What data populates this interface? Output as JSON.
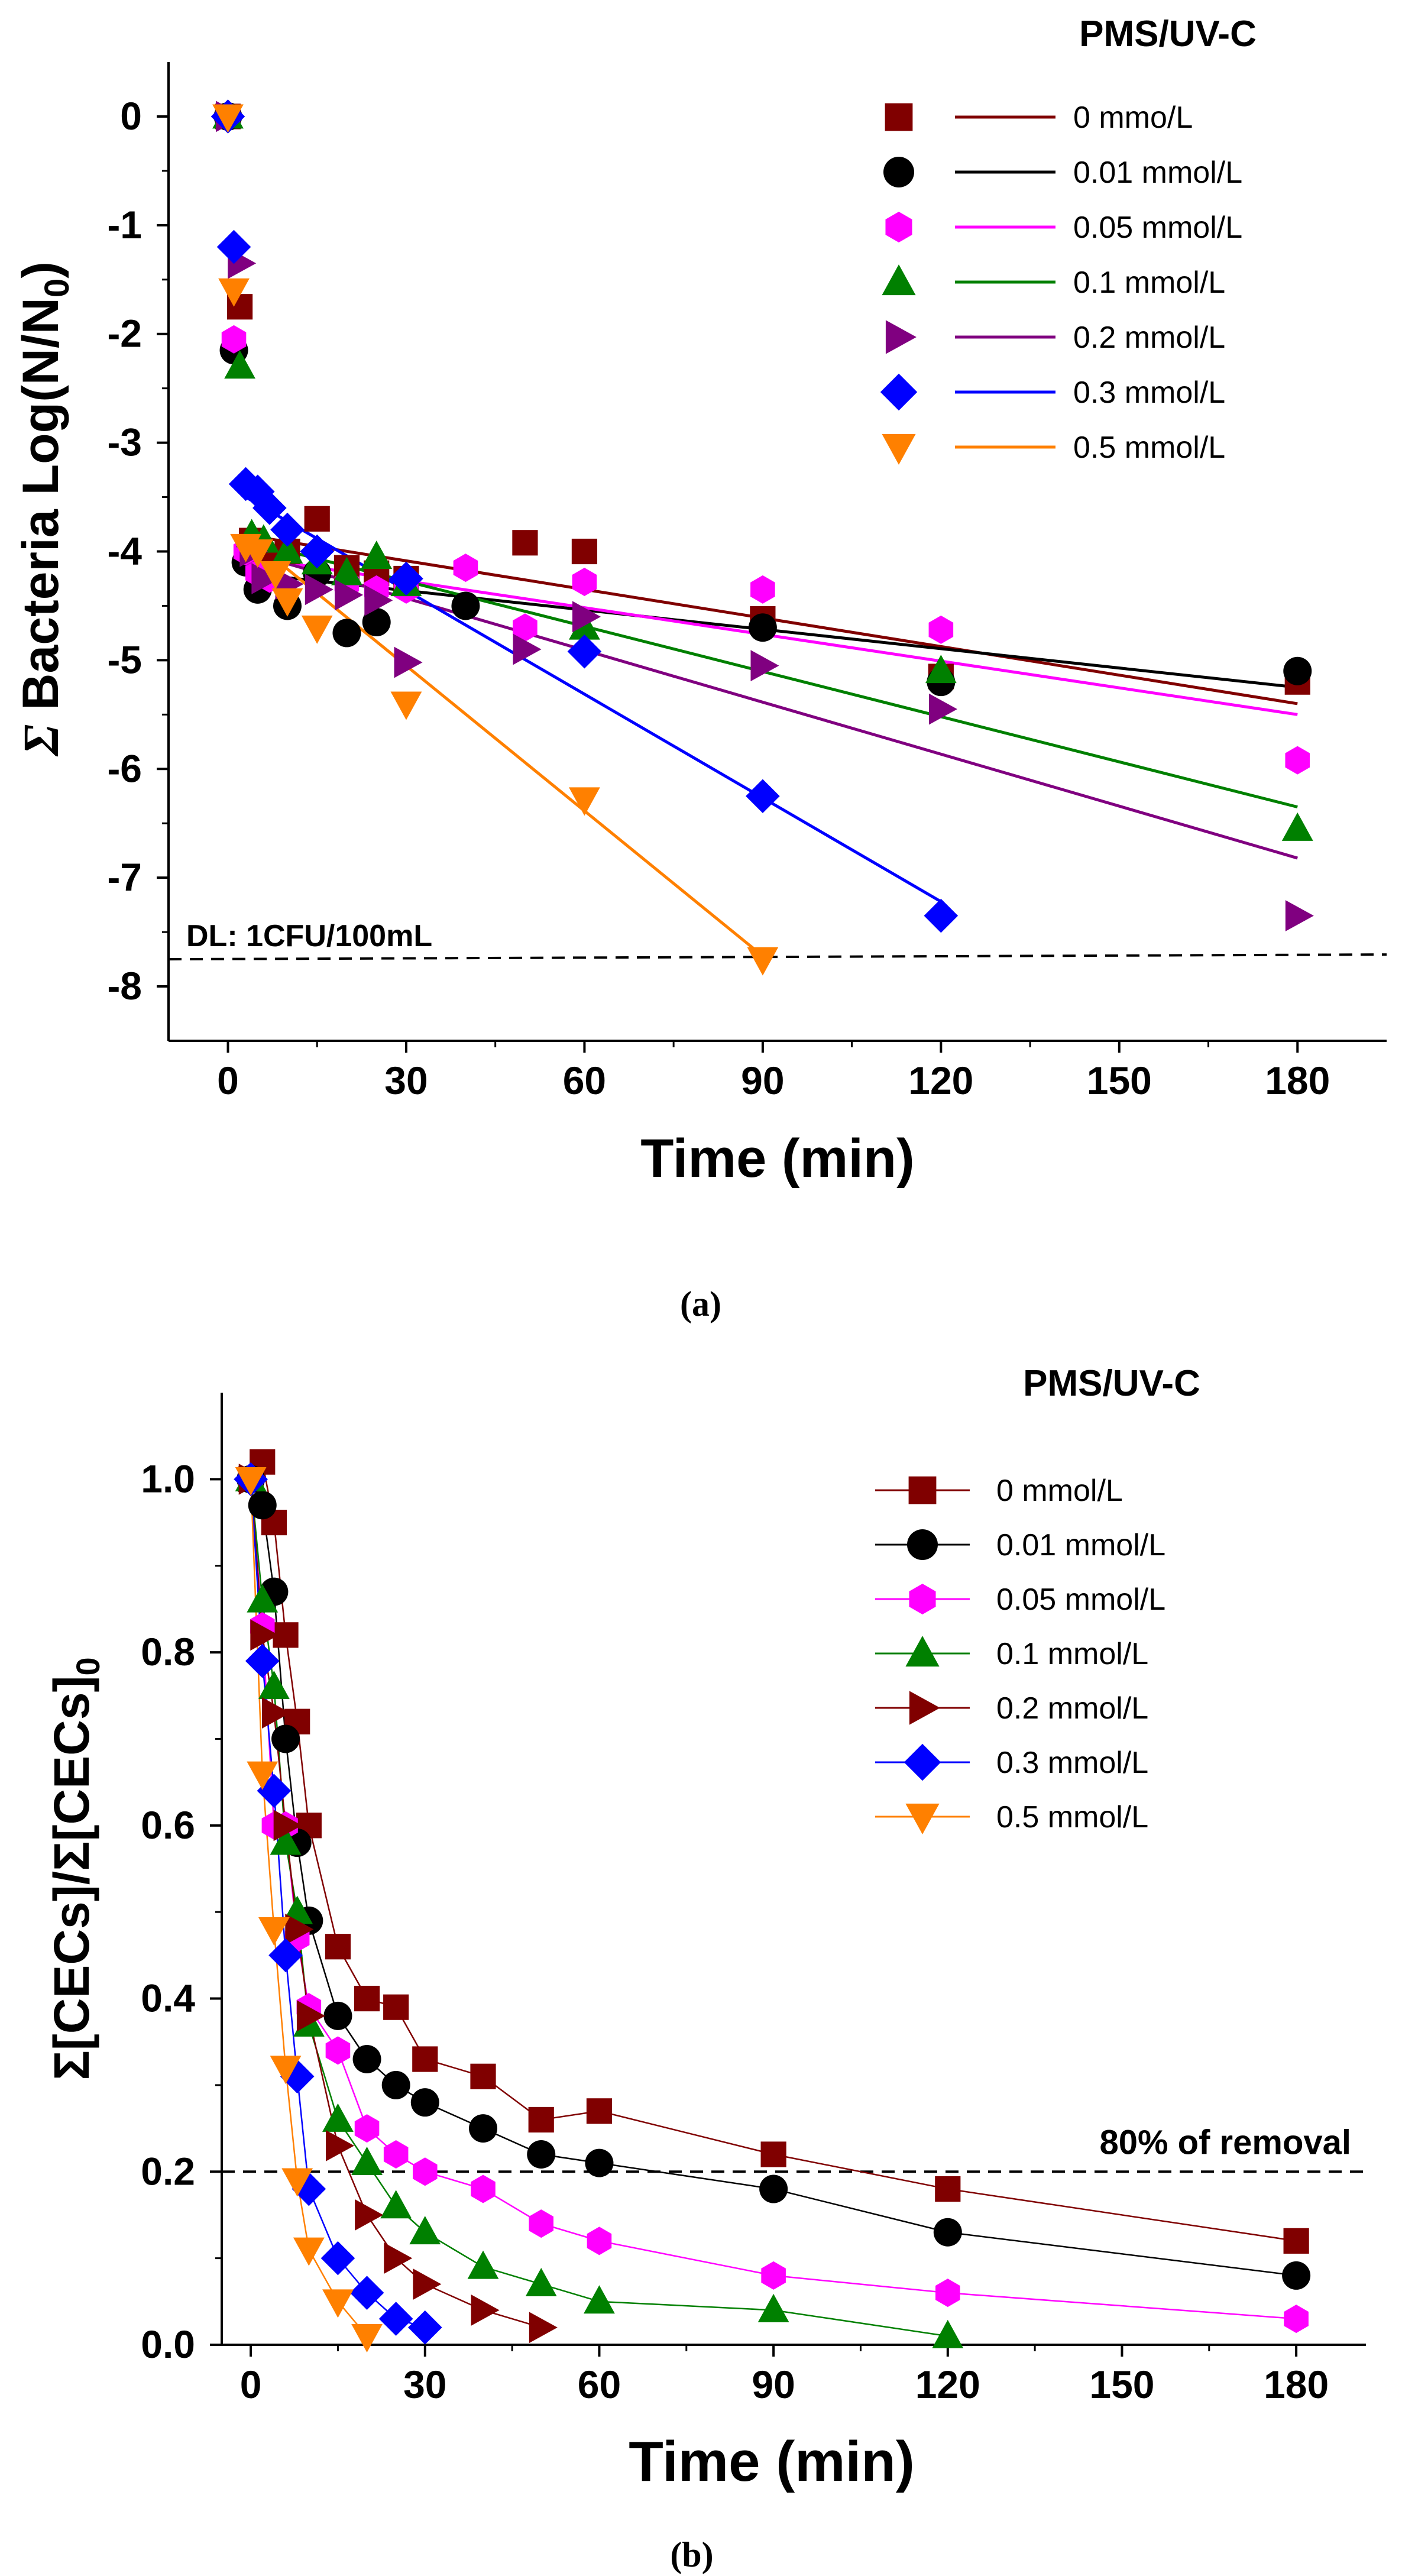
{
  "chart_data": [
    {
      "id": "a",
      "type": "scatter",
      "title": "PMS/UV-C",
      "caption": "(a)",
      "xlabel": "Time (min)",
      "ylabel_parts": [
        "Σ",
        " Bacteria Log(N/N",
        "0",
        ")"
      ],
      "xlim": [
        -10,
        195
      ],
      "ylim": [
        -8.5,
        0.5
      ],
      "xticks": [
        0,
        30,
        60,
        90,
        120,
        150,
        180
      ],
      "yticks": [
        0,
        -1,
        -2,
        -3,
        -4,
        -5,
        -6,
        -7,
        -8
      ],
      "detection_limit": {
        "y": -7.75,
        "label": "DL: 1CFU/100mL"
      },
      "series": [
        {
          "name": "0 mmo/L",
          "color": "#800000",
          "marker": "square",
          "x": [
            0,
            2,
            4,
            6,
            10,
            15,
            20,
            25,
            30,
            50,
            60,
            90,
            120,
            180
          ],
          "y": [
            0,
            -1.75,
            -3.9,
            -4.1,
            -4.0,
            -3.7,
            -4.15,
            -4.2,
            -4.25,
            -3.92,
            -4.0,
            -4.62,
            -5.15,
            -5.2
          ],
          "fit": [
            [
              3,
              -3.85
            ],
            [
              180,
              -5.4
            ]
          ]
        },
        {
          "name": "0.01 mmol/L",
          "color": "#000000",
          "marker": "circle",
          "x": [
            0,
            1,
            3,
            5,
            10,
            15,
            20,
            25,
            40,
            90,
            120,
            180
          ],
          "y": [
            0,
            -2.15,
            -4.1,
            -4.35,
            -4.5,
            -4.2,
            -4.75,
            -4.65,
            -4.5,
            -4.7,
            -5.2,
            -5.1
          ],
          "fit": [
            [
              3,
              -4.2
            ],
            [
              180,
              -5.25
            ]
          ]
        },
        {
          "name": "0.05 mmol/L",
          "color": "#ff00ff",
          "marker": "hexagon",
          "x": [
            0,
            1,
            3,
            5,
            7,
            20,
            25,
            30,
            40,
            50,
            60,
            90,
            120,
            180
          ],
          "y": [
            0,
            -2.05,
            -4.0,
            -4.2,
            -4.25,
            -4.3,
            -4.35,
            -4.35,
            -4.15,
            -4.7,
            -4.28,
            -4.35,
            -4.72,
            -5.92
          ],
          "fit": [
            [
              3,
              -4.05
            ],
            [
              180,
              -5.5
            ]
          ]
        },
        {
          "name": "0.1 mmol/L",
          "color": "#008000",
          "marker": "triangle-up",
          "x": [
            0,
            2,
            4,
            6,
            10,
            15,
            20,
            25,
            30,
            60,
            120,
            180
          ],
          "y": [
            0,
            -2.3,
            -3.85,
            -3.9,
            -4.0,
            -4.1,
            -4.2,
            -4.05,
            -4.3,
            -4.7,
            -5.1,
            -6.55
          ],
          "fit": [
            [
              3,
              -3.9
            ],
            [
              180,
              -6.35
            ]
          ]
        },
        {
          "name": "0.2 mmol/L",
          "color": "#800080",
          "marker": "triangle-right",
          "x": [
            0,
            2,
            4,
            6,
            10,
            15,
            20,
            25,
            30,
            50,
            60,
            90,
            120,
            180
          ],
          "y": [
            0,
            -1.35,
            -4.0,
            -4.25,
            -4.3,
            -4.35,
            -4.4,
            -4.45,
            -5.02,
            -4.9,
            -4.6,
            -5.05,
            -5.45,
            -7.35
          ],
          "fit": [
            [
              3,
              -4.0
            ],
            [
              180,
              -6.82
            ]
          ]
        },
        {
          "name": "0.3 mmol/L",
          "color": "#0000ff",
          "marker": "diamond",
          "x": [
            0,
            1,
            3,
            5,
            7,
            10,
            15,
            30,
            60,
            90,
            120
          ],
          "y": [
            0,
            -1.2,
            -3.38,
            -3.45,
            -3.6,
            -3.8,
            -4.0,
            -4.25,
            -4.92,
            -6.25,
            -7.35
          ],
          "fit": [
            [
              3,
              -3.5
            ],
            [
              120,
              -7.22
            ]
          ]
        },
        {
          "name": "0.5 mmol/L",
          "color": "#ff8000",
          "marker": "triangle-down",
          "x": [
            0,
            1,
            3,
            5,
            8,
            10,
            15,
            30,
            60,
            90
          ],
          "y": [
            0,
            -1.6,
            -3.95,
            -4.0,
            -4.2,
            -4.45,
            -4.7,
            -5.4,
            -6.28,
            -7.75
          ],
          "fit": [
            [
              3,
              -3.85
            ],
            [
              90,
              -7.72
            ]
          ]
        }
      ]
    },
    {
      "id": "b",
      "type": "line",
      "title": "PMS/UV-C",
      "caption": "(b)",
      "xlabel": "Time (min)",
      "ylabel": "Σ[CECs]/Σ[CECs]",
      "ylabel_sub": "0",
      "xlim": [
        -5,
        192
      ],
      "ylim": [
        0,
        1.1
      ],
      "xticks": [
        0,
        30,
        60,
        90,
        120,
        150,
        180
      ],
      "yticks": [
        0.0,
        0.2,
        0.4,
        0.6,
        0.8,
        1.0
      ],
      "ytick_labels": [
        "0.0",
        "0.2",
        "0.4",
        "0.6",
        "0.8",
        "1.0"
      ],
      "threshold": {
        "y": 0.2,
        "label": "80% of removal"
      },
      "series": [
        {
          "name": "0 mmol/L",
          "color": "#800000",
          "marker": "square",
          "x": [
            0,
            2,
            4,
            6,
            8,
            10,
            15,
            20,
            25,
            30,
            40,
            50,
            60,
            90,
            120,
            180
          ],
          "y": [
            1.0,
            1.02,
            0.95,
            0.82,
            0.72,
            0.6,
            0.46,
            0.4,
            0.39,
            0.33,
            0.31,
            0.26,
            0.27,
            0.22,
            0.18,
            0.12
          ]
        },
        {
          "name": "0.01 mmol/L",
          "color": "#000000",
          "marker": "circle",
          "x": [
            0,
            2,
            4,
            6,
            8,
            10,
            15,
            20,
            25,
            30,
            40,
            50,
            60,
            90,
            120,
            180
          ],
          "y": [
            1.0,
            0.97,
            0.87,
            0.7,
            0.58,
            0.49,
            0.38,
            0.33,
            0.3,
            0.28,
            0.25,
            0.22,
            0.21,
            0.18,
            0.13,
            0.08
          ]
        },
        {
          "name": "0.05 mmol/L",
          "color": "#ff00ff",
          "marker": "hexagon",
          "x": [
            0,
            2,
            4,
            6,
            8,
            10,
            15,
            20,
            25,
            30,
            40,
            50,
            60,
            90,
            120,
            180
          ],
          "y": [
            1.0,
            0.83,
            0.6,
            0.6,
            0.47,
            0.39,
            0.34,
            0.25,
            0.22,
            0.2,
            0.18,
            0.14,
            0.12,
            0.08,
            0.06,
            0.03
          ]
        },
        {
          "name": "0.1 mmol/L",
          "color": "#008000",
          "marker": "triangle-up",
          "x": [
            0,
            2,
            4,
            6,
            8,
            10,
            15,
            20,
            25,
            30,
            40,
            50,
            60,
            90,
            120
          ],
          "y": [
            1.0,
            0.86,
            0.76,
            0.58,
            0.5,
            0.37,
            0.26,
            0.21,
            0.16,
            0.13,
            0.09,
            0.07,
            0.05,
            0.04,
            0.01
          ]
        },
        {
          "name": "0.2 mmol/L",
          "color": "#800000",
          "marker": "triangle-right",
          "x": [
            0,
            2,
            4,
            6,
            8,
            10,
            15,
            20,
            25,
            30,
            40,
            50
          ],
          "y": [
            1.0,
            0.82,
            0.73,
            0.6,
            0.48,
            0.38,
            0.23,
            0.15,
            0.1,
            0.07,
            0.04,
            0.02
          ]
        },
        {
          "name": "0.3 mmol/L",
          "color": "#0000ff",
          "marker": "diamond",
          "x": [
            0,
            2,
            4,
            6,
            8,
            10,
            15,
            20,
            25,
            30
          ],
          "y": [
            1.0,
            0.79,
            0.64,
            0.45,
            0.31,
            0.18,
            0.1,
            0.06,
            0.03,
            0.02
          ]
        },
        {
          "name": "0.5 mmol/L",
          "color": "#ff8000",
          "marker": "triangle-down",
          "x": [
            0,
            2,
            4,
            6,
            8,
            10,
            15,
            20
          ],
          "y": [
            1.0,
            0.66,
            0.48,
            0.32,
            0.19,
            0.11,
            0.05,
            0.01
          ]
        }
      ]
    }
  ]
}
